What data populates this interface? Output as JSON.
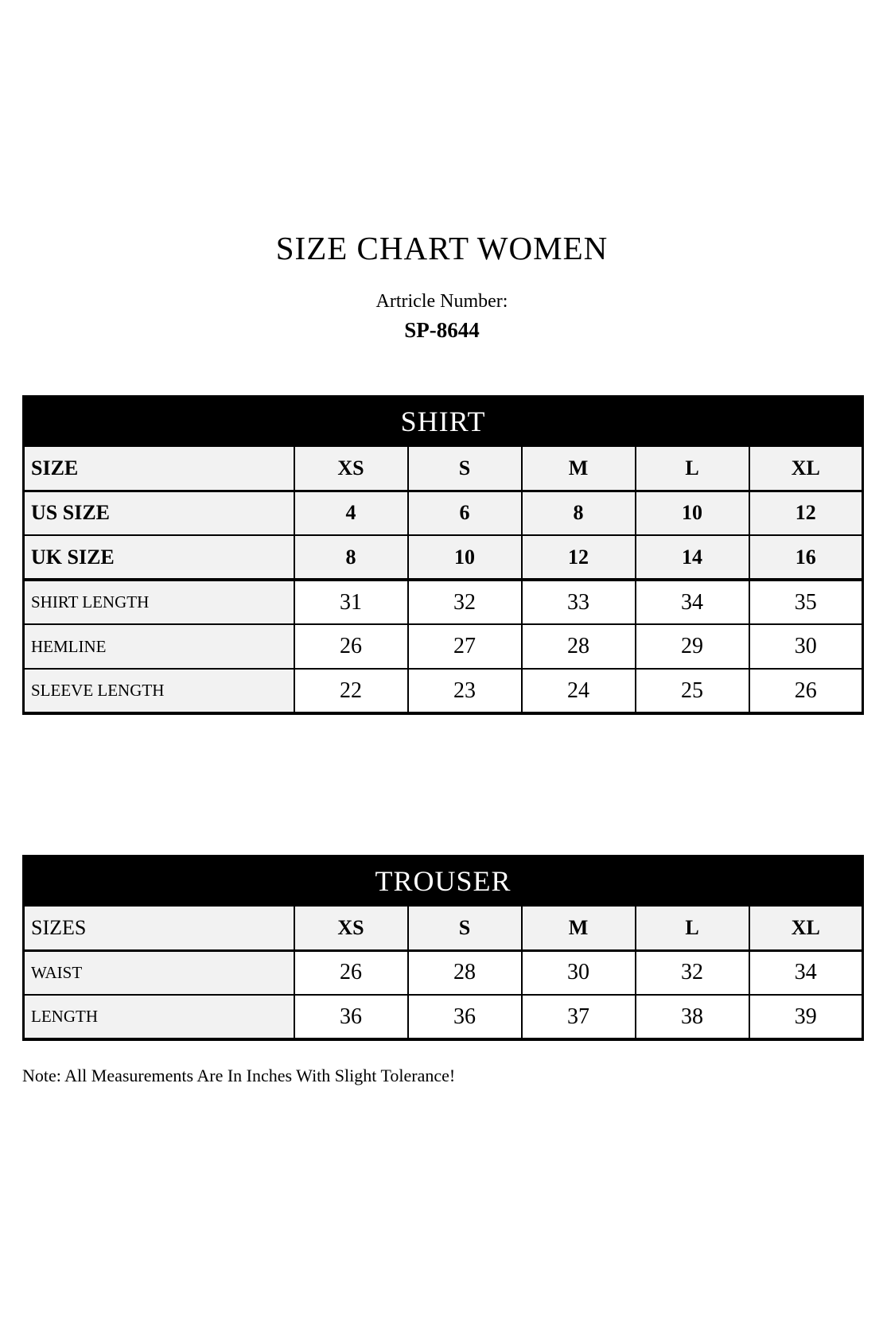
{
  "document": {
    "title": "SIZE CHART WOMEN",
    "article_label": "Artricle Number:",
    "article_number": "SP-8644",
    "note": "Note: All Measurements Are In Inches With Slight Tolerance!"
  },
  "colors": {
    "banner_bg": "#000000",
    "banner_text": "#ffffff",
    "label_cell_bg": "#f2f2f2",
    "data_cell_bg": "#ffffff",
    "border": "#000000"
  },
  "shirt": {
    "banner": "SHIRT",
    "header_rows": [
      {
        "label": "SIZE",
        "values": [
          "XS",
          "S",
          "M",
          "L",
          "XL"
        ]
      },
      {
        "label": "US SIZE",
        "values": [
          "4",
          "6",
          "8",
          "10",
          "12"
        ]
      },
      {
        "label": "UK SIZE",
        "values": [
          "8",
          "10",
          "12",
          "14",
          "16"
        ]
      }
    ],
    "measure_rows": [
      {
        "label": "SHIRT LENGTH",
        "values": [
          "31",
          "32",
          "33",
          "34",
          "35"
        ]
      },
      {
        "label": "HEMLINE",
        "values": [
          "26",
          "27",
          "28",
          "29",
          "30"
        ]
      },
      {
        "label": "SLEEVE LENGTH",
        "values": [
          "22",
          "23",
          "24",
          "25",
          "26"
        ]
      }
    ]
  },
  "trouser": {
    "banner": "TROUSER",
    "header_rows": [
      {
        "label": "SIZES",
        "values": [
          "XS",
          "S",
          "M",
          "L",
          "XL"
        ]
      }
    ],
    "measure_rows": [
      {
        "label": "WAIST",
        "values": [
          "26",
          "28",
          "30",
          "32",
          "34"
        ]
      },
      {
        "label": "LENGTH",
        "values": [
          "36",
          "36",
          "37",
          "38",
          "39"
        ]
      }
    ]
  }
}
